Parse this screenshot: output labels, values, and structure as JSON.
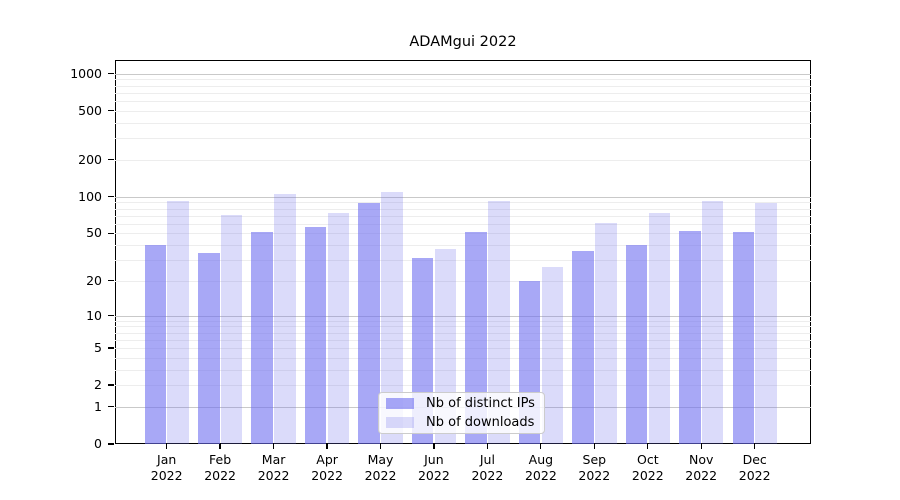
{
  "title": "ADAMgui 2022",
  "chart_data": {
    "type": "bar",
    "title": "ADAMgui 2022",
    "categories": [
      "Jan",
      "Feb",
      "Mar",
      "Apr",
      "May",
      "Jun",
      "Jul",
      "Aug",
      "Sep",
      "Oct",
      "Nov",
      "Dec"
    ],
    "year": "2022",
    "series": [
      {
        "name": "Nb of distinct IPs",
        "color": "rgba(110,110,240,0.6)",
        "values": [
          40,
          34,
          51,
          56,
          89,
          31,
          51,
          20,
          36,
          40,
          52,
          51
        ]
      },
      {
        "name": "Nb of downloads",
        "color": "rgba(110,110,235,0.25)",
        "values": [
          93,
          71,
          106,
          74,
          109,
          37,
          92,
          26,
          61,
          73,
          93,
          89
        ]
      }
    ],
    "y_axis": {
      "scale": "log1p",
      "tick_values": [
        0,
        1,
        2,
        5,
        10,
        20,
        50,
        100,
        200,
        500,
        1000
      ],
      "major_gridlines": [
        1,
        10,
        100,
        1000
      ],
      "range_max": 1290
    },
    "x_axis": {
      "tick_per_month": true
    },
    "grid": true,
    "legend_position": "bottom-center-inside"
  },
  "colors": {
    "major_grid": "#c9c9c9",
    "minor_grid": "#ededed",
    "axis_frame": "#000000",
    "background": "#ffffff",
    "legend_border": "#cccccc",
    "legend_bg": "rgba(255,255,255,0.8)",
    "ips_fill": "rgba(110,110,240,0.6)",
    "downloads_fill": "rgba(110,110,235,0.25)"
  }
}
